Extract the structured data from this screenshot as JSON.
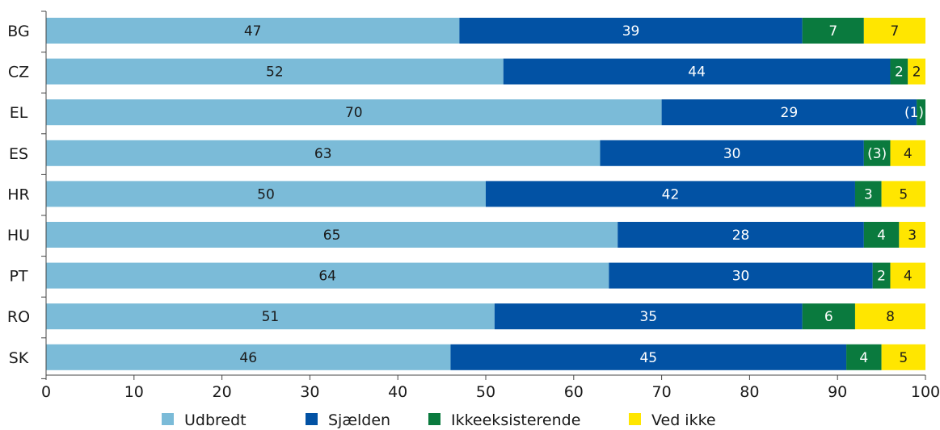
{
  "chart_data": {
    "type": "bar",
    "orientation": "horizontal",
    "stacked": true,
    "categories": [
      "BG",
      "CZ",
      "EL",
      "ES",
      "HR",
      "HU",
      "PT",
      "RO",
      "SK"
    ],
    "series": [
      {
        "name": "Udbredt",
        "color": "#7bbbd8",
        "label_color": "#1a1a1a",
        "values": [
          47,
          52,
          70,
          63,
          50,
          65,
          64,
          51,
          46
        ],
        "labels": [
          "47",
          "52",
          "70",
          "63",
          "50",
          "65",
          "64",
          "51",
          "46"
        ]
      },
      {
        "name": "Sjælden",
        "color": "#0252a4",
        "label_color": "#ffffff",
        "values": [
          39,
          44,
          29,
          30,
          42,
          28,
          30,
          35,
          45
        ],
        "labels": [
          "39",
          "44",
          "29",
          "30",
          "42",
          "28",
          "30",
          "35",
          "45"
        ]
      },
      {
        "name": "Ikkeeksisterende",
        "color": "#0a7a3e",
        "label_color": "#ffffff",
        "values": [
          7,
          2,
          1,
          3,
          3,
          4,
          2,
          6,
          4
        ],
        "labels": [
          "7",
          "2",
          "(1)",
          "(3)",
          "3",
          "4",
          "2",
          "6",
          "4"
        ]
      },
      {
        "name": "Ved ikke",
        "color": "#ffe600",
        "label_color": "#1a1a1a",
        "values": [
          7,
          2,
          0,
          4,
          5,
          3,
          4,
          8,
          5
        ],
        "labels": [
          "7",
          "2",
          "",
          "4",
          "5",
          "3",
          "4",
          "8",
          "5"
        ]
      }
    ],
    "xlim": [
      0,
      100
    ],
    "xticks": [
      "0",
      "10",
      "20",
      "30",
      "40",
      "50",
      "60",
      "70",
      "80",
      "90",
      "100"
    ],
    "grid": false,
    "legend_position": "bottom"
  }
}
